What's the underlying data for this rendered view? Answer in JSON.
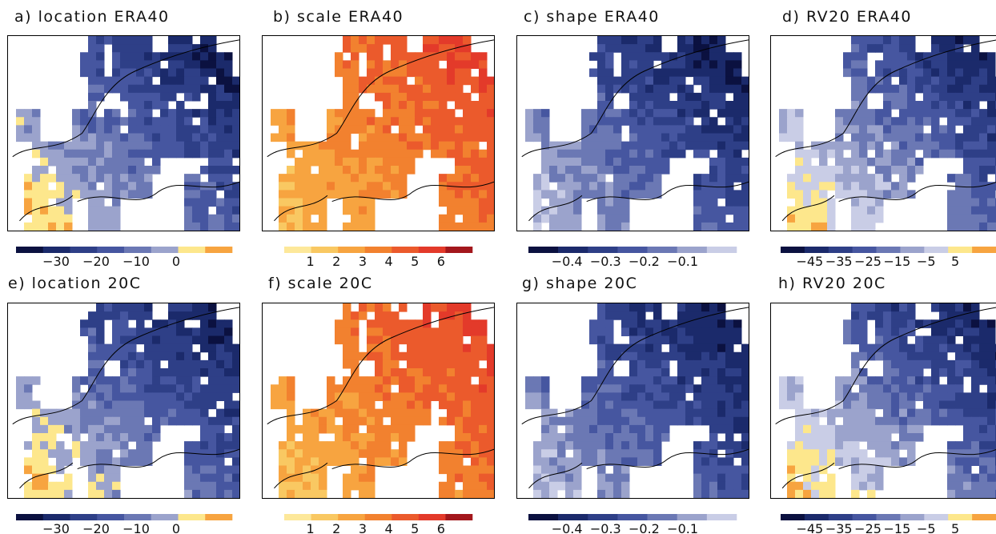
{
  "colors": {
    "blue": [
      "#0b1140",
      "#1b2a6b",
      "#2e3f87",
      "#4656a0",
      "#6b78b4",
      "#9ba3cc",
      "#c9cde6"
    ],
    "warm_location": [
      "#fde78c",
      "#f7a440"
    ],
    "warm_scale": [
      "#fde89a",
      "#f9c862",
      "#f7a440",
      "#f2812f",
      "#eb5a2c",
      "#e33a2a",
      "#a3171c"
    ],
    "rv_warm": [
      "#fde78c",
      "#f7a440"
    ]
  },
  "chart_data": [
    {
      "id": "a",
      "type": "heatmap",
      "title": "a) location ERA40",
      "colorbar_ticks": [
        "−30",
        "−20",
        "−10",
        "0"
      ],
      "palette": "location",
      "field_seed": 11
    },
    {
      "id": "b",
      "type": "heatmap",
      "title": "b) scale ERA40",
      "colorbar_ticks": [
        "1",
        "2",
        "3",
        "4",
        "5",
        "6"
      ],
      "palette": "scale",
      "field_seed": 12
    },
    {
      "id": "c",
      "type": "heatmap",
      "title": "c) shape ERA40",
      "colorbar_ticks": [
        "−0.4",
        "−0.3",
        "−0.2",
        "−0.1"
      ],
      "palette": "shape",
      "field_seed": 13
    },
    {
      "id": "d",
      "type": "heatmap",
      "title": "d) RV20 ERA40",
      "colorbar_ticks": [
        "−45",
        "−35",
        "−25",
        "−15",
        "−5",
        "5"
      ],
      "palette": "rv",
      "field_seed": 14
    },
    {
      "id": "e",
      "type": "heatmap",
      "title": "e) location 20C",
      "colorbar_ticks": [
        "−30",
        "−20",
        "−10",
        "0"
      ],
      "palette": "location",
      "field_seed": 21
    },
    {
      "id": "f",
      "type": "heatmap",
      "title": "f) scale 20C",
      "colorbar_ticks": [
        "1",
        "2",
        "3",
        "4",
        "5",
        "6"
      ],
      "palette": "scale",
      "field_seed": 22
    },
    {
      "id": "g",
      "type": "heatmap",
      "title": "g) shape 20C",
      "colorbar_ticks": [
        "−0.4",
        "−0.3",
        "−0.2",
        "−0.1"
      ],
      "palette": "shape",
      "field_seed": 23
    },
    {
      "id": "h",
      "type": "heatmap",
      "title": "h) RV20 20C",
      "colorbar_ticks": [
        "−45",
        "−35",
        "−25",
        "−15",
        "−5",
        "5"
      ],
      "palette": "rv",
      "field_seed": 24
    }
  ]
}
